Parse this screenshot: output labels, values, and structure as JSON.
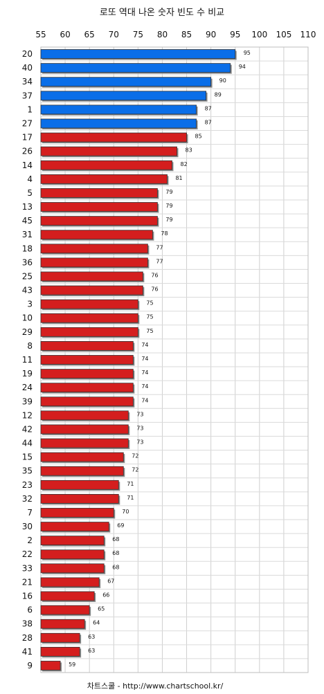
{
  "chart_data": {
    "type": "bar",
    "orientation": "horizontal",
    "title": "로또 역대 나온 숫자 빈도 수 비교",
    "xlim": [
      55,
      110
    ],
    "xticks": [
      55,
      60,
      65,
      70,
      75,
      80,
      85,
      90,
      95,
      100,
      105,
      110
    ],
    "grid": true,
    "colors": {
      "highlight": "#0a6ee8",
      "normal": "#d41e1e"
    },
    "highlight_count": 6,
    "categories": [
      "20",
      "40",
      "34",
      "37",
      "1",
      "27",
      "17",
      "26",
      "14",
      "4",
      "5",
      "13",
      "45",
      "31",
      "18",
      "36",
      "25",
      "43",
      "3",
      "10",
      "29",
      "8",
      "11",
      "19",
      "24",
      "39",
      "12",
      "42",
      "44",
      "15",
      "35",
      "23",
      "32",
      "7",
      "30",
      "2",
      "22",
      "33",
      "21",
      "16",
      "6",
      "38",
      "28",
      "41",
      "9"
    ],
    "values": [
      95,
      94,
      90,
      89,
      87,
      87,
      85,
      83,
      82,
      81,
      79,
      79,
      79,
      78,
      77,
      77,
      76,
      76,
      75,
      75,
      75,
      74,
      74,
      74,
      74,
      74,
      73,
      73,
      73,
      72,
      72,
      71,
      71,
      70,
      69,
      68,
      68,
      68,
      67,
      66,
      65,
      64,
      63,
      63,
      59
    ]
  },
  "footer": "차트스쿨 - http://www.chartschool.kr/"
}
